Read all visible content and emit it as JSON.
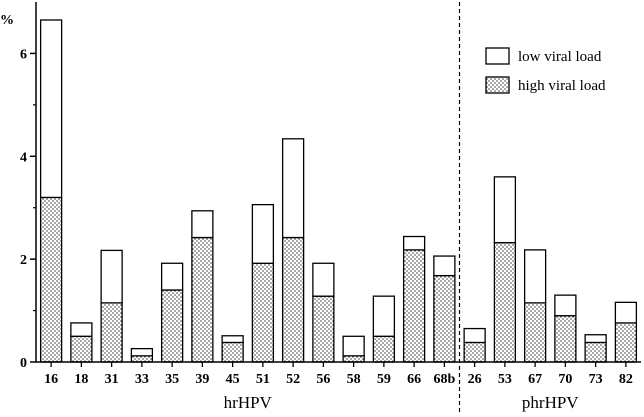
{
  "chart_data": {
    "type": "bar",
    "stacked": true,
    "ylabel": "%",
    "ylim": [
      0,
      7
    ],
    "yticks": [
      "0",
      "2",
      "4",
      "6"
    ],
    "categories": [
      "16",
      "18",
      "31",
      "33",
      "35",
      "39",
      "45",
      "51",
      "52",
      "56",
      "58",
      "59",
      "66",
      "68b",
      "26",
      "53",
      "67",
      "70",
      "73",
      "82"
    ],
    "groups": [
      {
        "name": "hrHPV",
        "count": 14
      },
      {
        "name": "phrHPV",
        "count": 6
      }
    ],
    "series": [
      {
        "name": "high viral load",
        "pattern": "dotted",
        "values": [
          3.2,
          0.5,
          1.15,
          0.12,
          1.4,
          2.42,
          0.38,
          1.92,
          2.42,
          1.28,
          0.12,
          0.5,
          2.18,
          1.68,
          0.38,
          2.32,
          1.15,
          0.9,
          0.38,
          0.76
        ]
      },
      {
        "name": "low viral load",
        "pattern": "white",
        "values": [
          3.45,
          0.26,
          1.02,
          0.14,
          0.52,
          0.52,
          0.13,
          1.14,
          1.92,
          0.64,
          0.38,
          0.78,
          0.26,
          0.38,
          0.27,
          1.28,
          1.03,
          0.4,
          0.15,
          0.4
        ]
      }
    ],
    "legend": [
      "low viral load",
      "high viral load"
    ],
    "legend_position": "top-right",
    "separator_after_category": "68b"
  }
}
